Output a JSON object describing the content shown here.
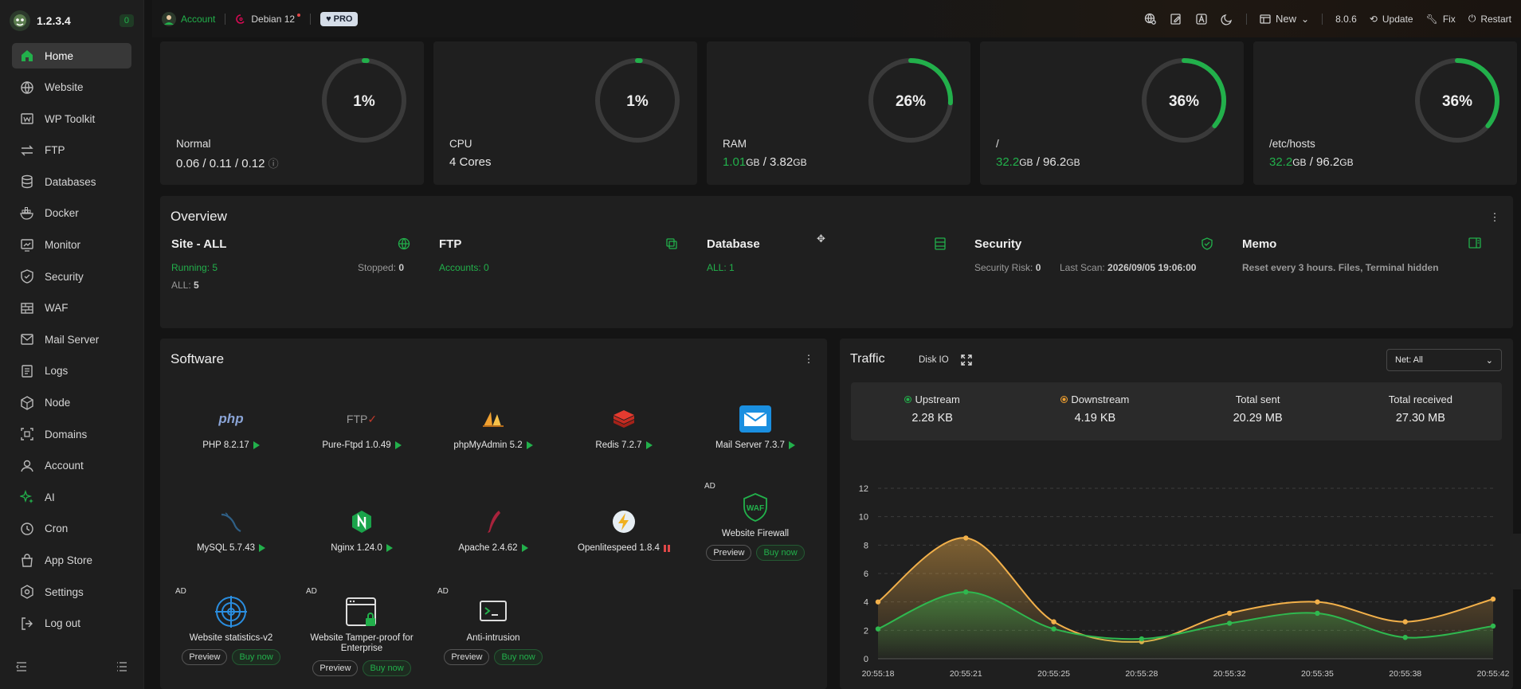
{
  "brand": {
    "version": "1.2.3.4",
    "badge": "0"
  },
  "sidebar": {
    "items": [
      {
        "label": "Home",
        "icon": "home-icon",
        "active": true
      },
      {
        "label": "Website",
        "icon": "globe-icon"
      },
      {
        "label": "WP Toolkit",
        "icon": "wordpress-icon"
      },
      {
        "label": "FTP",
        "icon": "transfer-icon"
      },
      {
        "label": "Databases",
        "icon": "database-icon"
      },
      {
        "label": "Docker",
        "icon": "docker-icon"
      },
      {
        "label": "Monitor",
        "icon": "monitor-icon"
      },
      {
        "label": "Security",
        "icon": "shield-icon"
      },
      {
        "label": "WAF",
        "icon": "firewall-icon"
      },
      {
        "label": "Mail Server",
        "icon": "mail-icon"
      },
      {
        "label": "Logs",
        "icon": "logs-icon"
      },
      {
        "label": "Node",
        "icon": "node-icon"
      },
      {
        "label": "Domains",
        "icon": "domain-icon"
      },
      {
        "label": "Account",
        "icon": "user-icon"
      },
      {
        "label": "AI",
        "icon": "ai-sparkle-icon"
      },
      {
        "label": "Cron",
        "icon": "clock-icon"
      },
      {
        "label": "App Store",
        "icon": "store-icon"
      },
      {
        "label": "Settings",
        "icon": "settings-icon"
      },
      {
        "label": "Log out",
        "icon": "logout-icon"
      }
    ]
  },
  "topbar": {
    "account": "Account",
    "os": "Debian 12",
    "pro": "PRO",
    "new_label": "New",
    "version": "8.0.6",
    "update": "Update",
    "fix": "Fix",
    "restart": "Restart"
  },
  "stats": [
    {
      "name": "Normal",
      "percent": "1%",
      "value_fraction": 0.01,
      "line1": "0.06 / 0.11 / 0.12"
    },
    {
      "name": "CPU",
      "percent": "1%",
      "value_fraction": 0.01,
      "line1": "4 Cores"
    },
    {
      "name": "RAM",
      "percent": "26%",
      "value_fraction": 0.26,
      "used": "1.01",
      "used_unit": "GB",
      "total": " / 3.82",
      "total_unit": "GB"
    },
    {
      "name": "/",
      "percent": "36%",
      "value_fraction": 0.36,
      "used": "32.2",
      "used_unit": "GB",
      "total": " / 96.2",
      "total_unit": "GB"
    },
    {
      "name": "/etc/hosts",
      "percent": "36%",
      "value_fraction": 0.36,
      "used": "32.2",
      "used_unit": "GB",
      "total": " / 96.2",
      "total_unit": "GB"
    }
  ],
  "overview": {
    "title": "Overview",
    "site": {
      "title": "Site - ALL",
      "running": "Running: 5",
      "stopped_label": "Stopped:",
      "stopped_value": "0",
      "all_label": "ALL:",
      "all_value": "5"
    },
    "ftp": {
      "title": "FTP",
      "accounts": "Accounts: 0"
    },
    "database": {
      "title": "Database",
      "all": "ALL: 1"
    },
    "security": {
      "title": "Security",
      "risk_label": "Security Risk:",
      "risk_value": "0",
      "scan_label": "Last Scan:",
      "scan_value": "2026/09/05 19:06:00"
    },
    "memo": {
      "title": "Memo",
      "text": "Reset every 3 hours. Files, Terminal hidden"
    }
  },
  "software": {
    "title": "Software",
    "items": [
      {
        "label": "PHP 8.2.17",
        "status": "play"
      },
      {
        "label": "Pure-Ftpd 1.0.49",
        "status": "play"
      },
      {
        "label": "phpMyAdmin 5.2",
        "status": "play"
      },
      {
        "label": "Redis 7.2.7",
        "status": "play"
      },
      {
        "label": "Mail Server 7.3.7",
        "status": "play"
      },
      {
        "label": "MySQL 5.7.43",
        "status": "play"
      },
      {
        "label": "Nginx 1.24.0",
        "status": "play"
      },
      {
        "label": "Apache 2.4.62",
        "status": "play"
      },
      {
        "label": "Openlitespeed 1.8.4",
        "status": "pause"
      }
    ],
    "ads": [
      {
        "label": "Website Firewall",
        "ad": "AD",
        "preview": "Preview",
        "buy": "Buy now"
      },
      {
        "label": "Website statistics-v2",
        "ad": "AD",
        "preview": "Preview",
        "buy": "Buy now"
      },
      {
        "label": "Website Tamper-proof for Enterprise",
        "ad": "AD",
        "preview": "Preview",
        "buy": "Buy now"
      },
      {
        "label": "Anti-intrusion",
        "ad": "AD",
        "preview": "Preview",
        "buy": "Buy now"
      }
    ]
  },
  "traffic": {
    "title": "Traffic",
    "disk_io": "Disk IO",
    "net_select": "Net: All",
    "stats": [
      {
        "label": "Upstream",
        "value": "2.28 KB",
        "dot": "#22b04b"
      },
      {
        "label": "Downstream",
        "value": "4.19 KB",
        "dot": "#f0a030"
      },
      {
        "label": "Total sent",
        "value": "20.29 MB"
      },
      {
        "label": "Total received",
        "value": "27.30 MB"
      }
    ]
  },
  "chart_data": {
    "type": "area",
    "x": [
      "20:55:18",
      "20:55:21",
      "20:55:25",
      "20:55:28",
      "20:55:32",
      "20:55:35",
      "20:55:38",
      "20:55:42"
    ],
    "ylim": [
      0,
      12
    ],
    "yticks": [
      0,
      2,
      4,
      6,
      8,
      10,
      12
    ],
    "grid": true,
    "series": [
      {
        "name": "Downstream",
        "color": "#f2b04a",
        "values": [
          4.0,
          8.5,
          2.6,
          1.2,
          3.2,
          4.0,
          2.6,
          4.2
        ]
      },
      {
        "name": "Upstream",
        "color": "#2fb84f",
        "values": [
          2.1,
          4.7,
          2.1,
          1.4,
          2.5,
          3.2,
          1.5,
          2.3
        ]
      }
    ]
  }
}
